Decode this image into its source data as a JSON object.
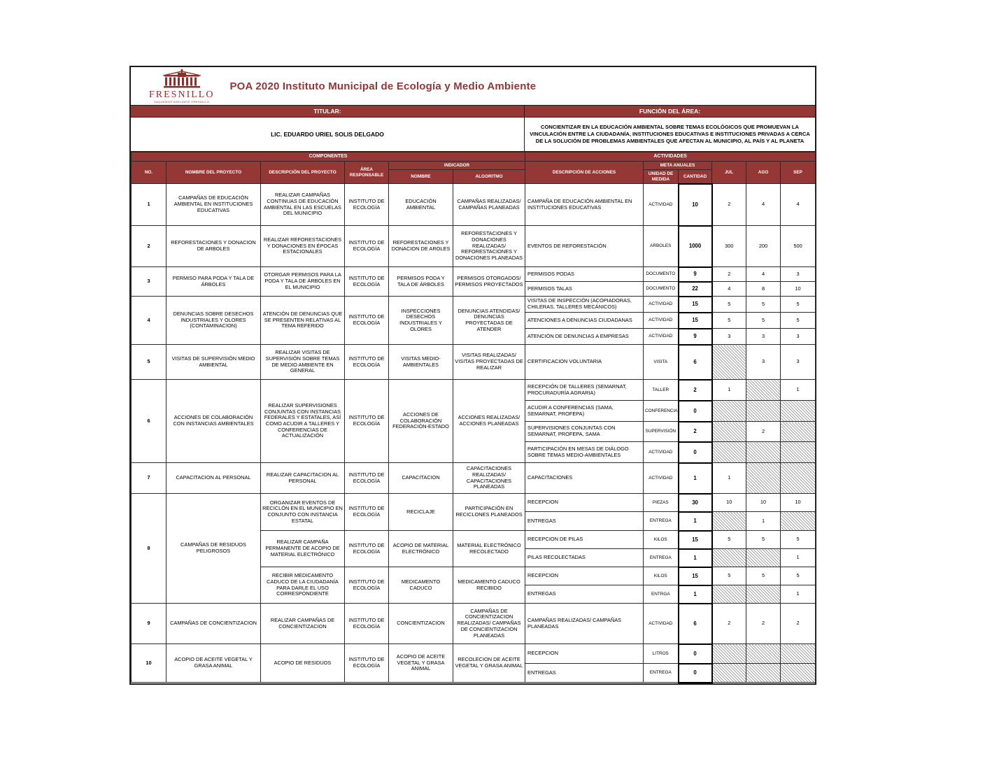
{
  "page": {
    "logo": {
      "wordmark": "FRESNILLO",
      "tagline": "SAQUEMOS ADELANTE FRESNILLO"
    },
    "title": "POA 2020 Instituto Municipal de Ecología y Medio Ambiente",
    "titular_label": "TITULAR:",
    "titular_name": "LIC. EDUARDO URIEL SOLIS DELGADO",
    "funcion_label": "FUNCIÓN DEL ÁREA:",
    "funcion_text": "CONCIENTIZAR EN LA EDUCACIÓN AMBIENTAL SOBRE TEMAS ECOLÓGICOS QUE PROMUEVAN LA VINCULACIÓN ENTRE LA CIUDADANÍA, INSTITUCIONES EDUCATIVAS E INSTITUCIONES PRIVADAS A CERCA DE LA SOLUCIÓN DE PROBLEMAS AMBIENTALES QUE AFECTAN AL MUNICIPIO, AL PAÍS Y AL PLANETA"
  },
  "colors": {
    "maroon": "#953735",
    "title_red": "#943634",
    "border": "#1c1c1c"
  },
  "table": {
    "headers": {
      "componentes": "COMPONENTES",
      "actividades": "ACTIVIDADES",
      "no": "NO.",
      "nombre_proyecto": "NOMBRE DEL PROYECTO",
      "descripcion_proyecto": "DESCRIPCIÓN DEL PROYECTO",
      "area_responsable": "ÁREA RESPONSABLE",
      "indicador": "INDICADOR",
      "indicador_nombre": "NOMBRE",
      "algoritmo": "ALGORITMO",
      "descripcion_acciones": "DESCRIPCIÓN DE ACCIONES",
      "meta_anuales": "META ANUALES",
      "unidad_medida": "UNIDAD DE MEDIDA",
      "cantidad": "CANTIDAD",
      "months": [
        "JUL",
        "AGO",
        "SEP"
      ]
    },
    "projects": [
      {
        "no": "1",
        "name": "CAMPAÑAS DE EDUCACIÓN AMBIENTAL EN INSTITUCIONES EDUCATIVAS",
        "blocks": [
          {
            "description": "REALIZAR CAMPAÑAS CONTINUAS DE EDUCACIÓN AMBIENTAL EN LAS ESCUELAS DEL MUNICIPIO",
            "area": "INSTITUTO DE ECOLOGÍA",
            "indicator_name": "EDUCACIÓN AMBIENTAL",
            "algorithm": "CAMPAÑAS REALIZADAS/ CAMPAÑAS PLANEADAS",
            "actions": [
              {
                "description": "CAMPAÑA DE EDUCACIÓN AMBIENTAL EN INSTITUCIONES EDUCATIVAS",
                "unit": "ACTIVIDAD",
                "qty": "10",
                "jul": "2",
                "ago": "4",
                "sep": "4"
              }
            ]
          }
        ]
      },
      {
        "no": "2",
        "name": "REFORESTACIONES Y DONACION DE ARBOLES",
        "blocks": [
          {
            "description": "REALIZAR REFORESTACIONES Y DONACIONES EN ÉPOCAS ESTACIONALES",
            "area": "INSTITUTO DE ECOLOGÍA",
            "indicator_name": "REFORESTACIONES Y DONACION DE AROLES",
            "algorithm": "REFORESTACIONES Y DONACIONES REALIZADAS/ REFORESTACIONES Y DONACIONES PLANEADAS",
            "actions": [
              {
                "description": "EVENTOS DE REFORESTACIÓN",
                "unit": "ARBOLES",
                "qty": "1000",
                "jul": "300",
                "ago": "200",
                "sep": "500"
              }
            ]
          }
        ]
      },
      {
        "no": "3",
        "name": "PERMISO PARA PODA Y TALA DE ÁRBOLES",
        "blocks": [
          {
            "description": "OTORGAR PERMISOS PARA LA PODA Y TALA DE ÁRBOLES EN EL MUNICIPIO",
            "area": "INSTITUTO DE ECOLOGÍA",
            "indicator_name": "PERMISOS PODA Y TALA DE ÁRBOLES",
            "algorithm": "PERMISOS OTORGADOS/ PERMISOS PROYECTADOS",
            "actions": [
              {
                "description": "PERMISOS PODAS",
                "unit": "DOCUMENTO",
                "qty": "9",
                "jul": "2",
                "ago": "4",
                "sep": "3"
              },
              {
                "description": "PERMISOS TALAS",
                "unit": "DOCUMENTO",
                "qty": "22",
                "jul": "4",
                "ago": "8",
                "sep": "10"
              }
            ]
          }
        ]
      },
      {
        "no": "4",
        "name": "DENUNCIAS SOBRE DESECHOS INDUSTRIALES Y OLORES (CONTAMINACION)",
        "blocks": [
          {
            "description": "ATENCIÓN DE DENUNCIAS QUE SE PRESENTEN RELATIVAS AL TEMA REFERIDO",
            "area": "INSTITUTO DE ECOLOGÍA",
            "indicator_name": "INSPECCIONES DESECHOS INDUSTRIALES Y OLORES",
            "algorithm": "DENUNCIAS ATENDIDAS/ DENUNCIAS PROYECTADAS DE ATENDER",
            "actions": [
              {
                "description": "VISITAS DE INSPECCIÓN (ACOPIADORAS, CHILERAS, TALLERES MECÁNICOS)",
                "unit": "ACTIVIDAD",
                "qty": "15",
                "jul": "5",
                "ago": "5",
                "sep": "5"
              },
              {
                "description": "ATENCIONES A DENUNCIAS CIUDADANAS",
                "unit": "ACTIVIDAD",
                "qty": "15",
                "jul": "5",
                "ago": "5",
                "sep": "5"
              },
              {
                "description": "ATENCIÓN DE DENUNCIAS A EMPRESAS",
                "unit": "ACTIVIDAD",
                "qty": "9",
                "jul": "3",
                "ago": "3",
                "sep": "3"
              }
            ]
          }
        ]
      },
      {
        "no": "5",
        "name": "VISITAS DE SUPERVISIÓN MEDIO AMBIENTAL",
        "blocks": [
          {
            "description": "REALIZAR VISITAS DE SUPERVISIÓN SOBRE TEMAS DE MEDIO AMBIENTE EN GENERAL",
            "area": "INSTITUTO DE ECOLOGÍA",
            "indicator_name": "VISITAS MEDIO-AMBIENTALES",
            "algorithm": "VISITAS REALIZADAS/ VISITAS PROYECTADAS DE REALIZAR",
            "actions": [
              {
                "description": "CERTIFICACION VOLUNTARIA",
                "unit": "VISITA",
                "qty": "6",
                "jul": null,
                "ago": "3",
                "sep": "3"
              }
            ]
          }
        ]
      },
      {
        "no": "6",
        "name": "ACCIONES DE COLABORACIÓN CON INSTANCIAS AMBIENTALES",
        "blocks": [
          {
            "description": "REALIZAR SUPERVISIONES CONJUNTAS CON INSTANCIAS FEDERALES Y ESTATALES, ASÍ COMO ACUDIR A TALLERES Y CONFERENCIAS DE ACTUALIZACIÓN",
            "area": "INSTITUTO DE ECOLOGÍA",
            "indicator_name": "ACCIONES DE COLABORACIÓN FEDERACIÓN-ESTADO",
            "algorithm": "ACCIONES REALIZADAS/ ACCIONES PLANEADAS",
            "actions": [
              {
                "description": "RECEPCIÓN DE TALLERES (SEMARNAT, PROCURADURÍA AGRARIA)",
                "unit": "TALLER",
                "qty": "2",
                "jul": "1",
                "ago": null,
                "sep": "1"
              },
              {
                "description": "ACUDIR A CONFERENCIAS (SAMA, SEMARNAT, PROFEPA)",
                "unit": "CONFERENCIA",
                "qty": "0",
                "jul": null,
                "ago": null,
                "sep": null
              },
              {
                "description": "SUPERVISIONES CONJUNTAS CON SEMARNAT, PROFEPA, SAMA",
                "unit": "SUPERVISIÓN",
                "qty": "2",
                "jul": null,
                "ago": "2",
                "sep": null
              },
              {
                "description": "PARTICIPACIÓN EN MESAS DE DIÁLOGO SOBRE TEMAS MEDIO-AMBIENTALES",
                "unit": "ACTIVIDAD",
                "qty": "0",
                "jul": null,
                "ago": null,
                "sep": null
              }
            ]
          }
        ]
      },
      {
        "no": "7",
        "name": "CAPACITACION AL PERSONAL",
        "blocks": [
          {
            "description": "REALIZAR CAPACITACION AL PERSONAL",
            "area": "INSTITUTO DE ECOLOGÍA",
            "indicator_name": "CAPACITACION",
            "algorithm": "CAPACITACIONES REALIZADAS/ CAPACITACIONES PLANEADAS",
            "actions": [
              {
                "description": "CAPACITACIONES",
                "unit": "ACTIVIDAD",
                "qty": "1",
                "jul": "1",
                "ago": null,
                "sep": null
              }
            ]
          }
        ]
      },
      {
        "no": "8",
        "name": "CAMPAÑAS DE RESIDUOS PELIGROSOS",
        "blocks": [
          {
            "description": "ORGANIZAR EVENTOS DE RECICLÓN EN EL MUNICIPIO EN CONJUNTO CON INSTANCIA ESTATAL",
            "area": "INSTITUTO DE ECOLOGÍA",
            "indicator_name": "RECICLAJE",
            "algorithm": "PARTICIPACIÓN EN RECICLONES PLANEADOS",
            "actions": [
              {
                "description": "RECEPCION",
                "unit": "PIEZAS",
                "qty": "30",
                "jul": "10",
                "ago": "10",
                "sep": "10"
              },
              {
                "description": "ENTREGAS",
                "unit": "ENTREGA",
                "qty": "1",
                "jul": null,
                "ago": "1",
                "sep": null
              }
            ]
          },
          {
            "description": "REALIZAR CAMPAÑA PERMANENTE DE ACOPIO DE MATERIAL ELECTRÓNICO",
            "area": "INSTITUTO DE ECOLOGÍA",
            "indicator_name": "ACOPIO DE MATERIAL ELECTRÓNICO",
            "algorithm": "MATERIAL ELECTRÓNICO RECOLECTADO",
            "actions": [
              {
                "description": "RECEPCION DE PILAS",
                "unit": "KILOS",
                "qty": "15",
                "jul": "5",
                "ago": "5",
                "sep": "5"
              },
              {
                "description": "PILAS RECOLECTADAS",
                "unit": "ENTREGA",
                "qty": "1",
                "jul": null,
                "ago": null,
                "sep": "1"
              }
            ]
          },
          {
            "description": "RECIBIR MEDICAMENTO CADUCO DE LA CIUDADANÍA PARA DARLE EL USO CORRESPONDIENTE",
            "area": "INSTITUTO DE ECOLOGÍA",
            "indicator_name": "MEDICAMENTO CADUCO",
            "algorithm": "MEDICAMENTO CADUCO RECIBIDO",
            "actions": [
              {
                "description": "RECEPCION",
                "unit": "KILOS",
                "qty": "15",
                "jul": "5",
                "ago": "5",
                "sep": "5"
              },
              {
                "description": "ENTREGAS",
                "unit": "ENTRGA",
                "qty": "1",
                "jul": null,
                "ago": null,
                "sep": "1"
              }
            ]
          }
        ]
      },
      {
        "no": "9",
        "name": "CAMPAÑAS DE CONCIENTIZACION",
        "blocks": [
          {
            "description": "REALIZAR CAMPAÑAS DE CONCIENTIZACION",
            "area": "INSTITUTO DE ECOLOGÍA",
            "indicator_name": "CONCIENTIZACION",
            "algorithm": "CAMPAÑAS DE CONCIENTIZACION REALIZADAS/ CAMPAÑAS DE CONCIENTIZACION PLANEADAS",
            "actions": [
              {
                "description": "CAMPAÑAS REALIZADAS/ CAMPAÑAS PLANEADAS",
                "unit": "ACTIVIDAD",
                "qty": "6",
                "jul": "2",
                "ago": "2",
                "sep": "2"
              }
            ]
          }
        ]
      },
      {
        "no": "10",
        "name": "ACOPIO DE ACEITE VEGETAL Y GRASA ANIMAL",
        "blocks": [
          {
            "description": "ACOPIO DE RESIDUOS",
            "area": "INSTITUTO DE ECOLOGÍA",
            "indicator_name": "ACOPIO DE ACEITE VEGETAL Y GRASA ANIMAL",
            "algorithm": "RECOLECION DE ACEITE VEGETAL Y GRASA ANIMAL",
            "actions": [
              {
                "description": "RECEPCION",
                "unit": "LITROS",
                "qty": "0",
                "jul": null,
                "ago": null,
                "sep": null
              },
              {
                "description": "ENTREGAS",
                "unit": "ENTREGA",
                "qty": "0",
                "jul": null,
                "ago": null,
                "sep": null
              }
            ]
          }
        ]
      }
    ]
  }
}
